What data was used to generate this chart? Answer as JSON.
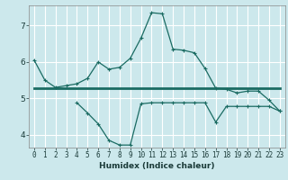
{
  "xlabel": "Humidex (Indice chaleur)",
  "ylabel": "",
  "background_color": "#cce8ec",
  "grid_color": "#ffffff",
  "line_color": "#1a6b62",
  "xlim": [
    -0.5,
    23.5
  ],
  "ylim": [
    3.65,
    7.55
  ],
  "yticks": [
    4,
    5,
    6,
    7
  ],
  "xticks": [
    0,
    1,
    2,
    3,
    4,
    5,
    6,
    7,
    8,
    9,
    10,
    11,
    12,
    13,
    14,
    15,
    16,
    17,
    18,
    19,
    20,
    21,
    22,
    23
  ],
  "line1_x": [
    0,
    1,
    2,
    3,
    4,
    5,
    6,
    7,
    8,
    9,
    10,
    11,
    12,
    13,
    14,
    15,
    16,
    17,
    18,
    19,
    20,
    21,
    22,
    23
  ],
  "line1_y": [
    6.05,
    5.5,
    5.3,
    5.35,
    5.4,
    5.55,
    6.0,
    5.8,
    5.85,
    6.1,
    6.65,
    7.35,
    7.32,
    6.35,
    6.32,
    6.25,
    5.82,
    5.28,
    5.25,
    5.15,
    5.2,
    5.2,
    4.95,
    4.65
  ],
  "line2_x": [
    0,
    1,
    2,
    3,
    4,
    5,
    6,
    7,
    8,
    9,
    10,
    11,
    12,
    13,
    14,
    15,
    16,
    17,
    18,
    19,
    20,
    21,
    22,
    23
  ],
  "line2_y": [
    5.27,
    5.27,
    5.27,
    5.27,
    5.27,
    5.27,
    5.27,
    5.27,
    5.27,
    5.27,
    5.27,
    5.27,
    5.27,
    5.27,
    5.27,
    5.27,
    5.27,
    5.27,
    5.27,
    5.27,
    5.27,
    5.27,
    5.27,
    5.27
  ],
  "line3_x": [
    4,
    5,
    6,
    7,
    8,
    9,
    10,
    11,
    12,
    13,
    14,
    15,
    16,
    17,
    18,
    19,
    20,
    21,
    22,
    23
  ],
  "line3_y": [
    4.88,
    4.6,
    4.3,
    3.85,
    3.72,
    3.72,
    4.85,
    4.88,
    4.88,
    4.88,
    4.88,
    4.88,
    4.88,
    4.35,
    4.78,
    4.78,
    4.78,
    4.78,
    4.78,
    4.65
  ]
}
